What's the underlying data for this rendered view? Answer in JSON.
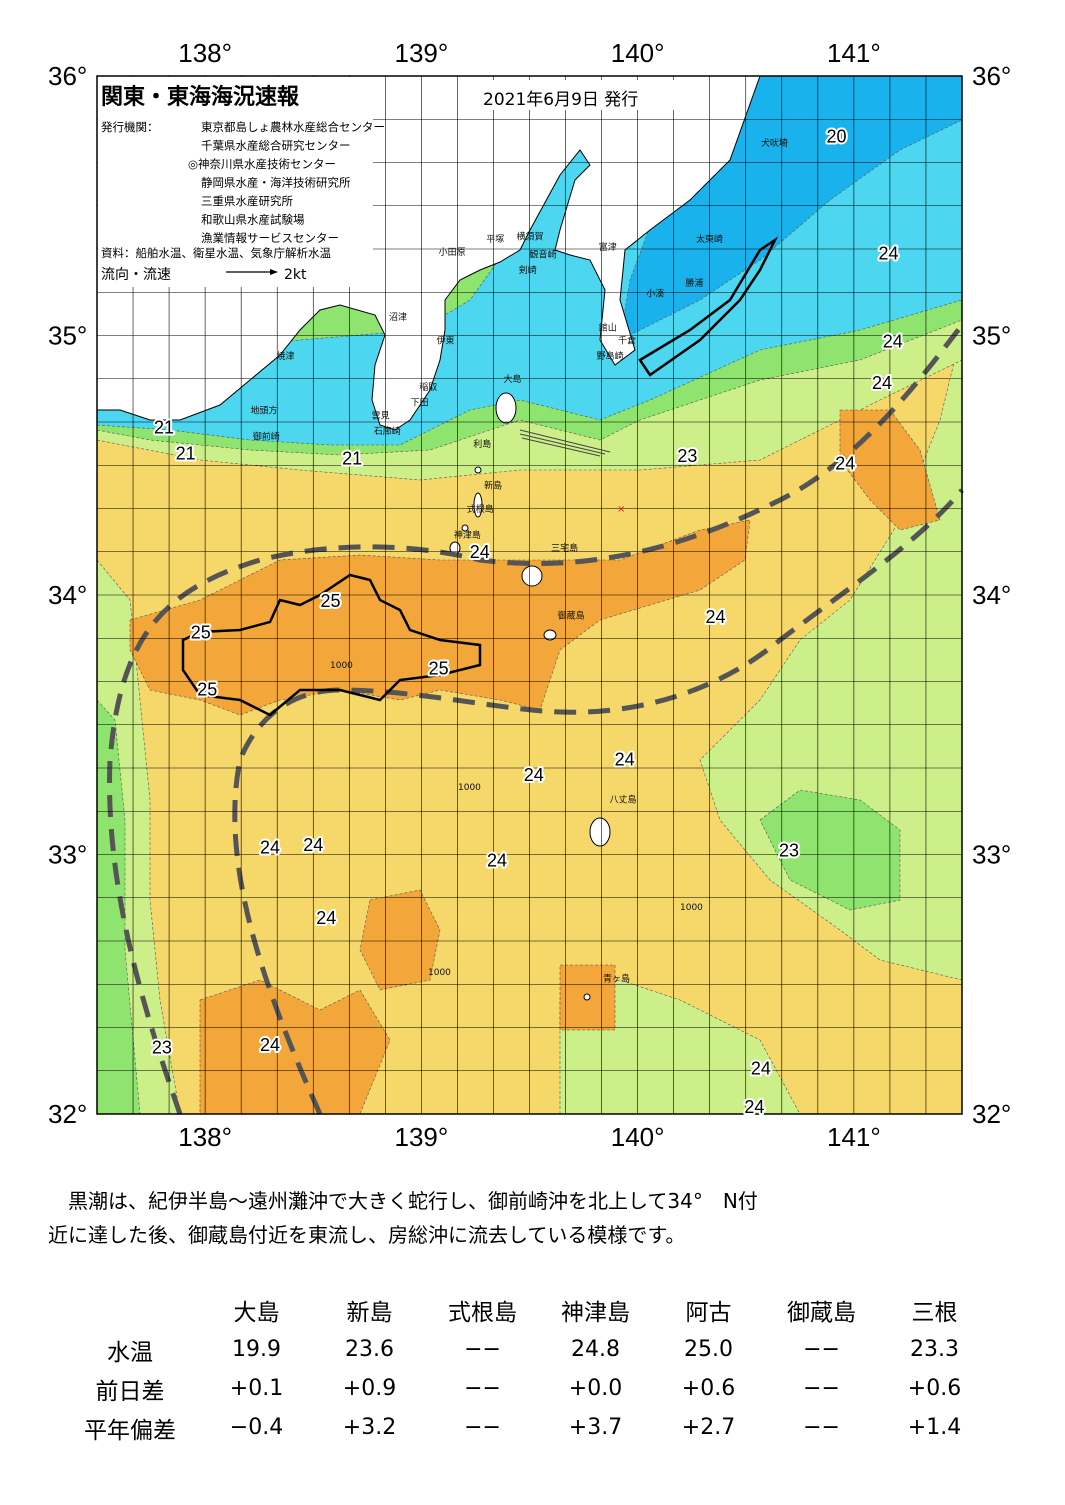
{
  "map": {
    "title": "関東・東海海況速報",
    "issue_date": "2021年6月9日 発行",
    "issuer_label": "発行機関：",
    "issuers": [
      "東京都島しょ農林水産総合センター",
      "千葉県水産総合研究センター",
      "◎神奈川県水産技術センター",
      "静岡県水産・海洋技術研究所",
      "三重県水産研究所",
      "和歌山県水産試験場",
      "漁業情報サービスセンター"
    ],
    "source": "資料：船舶水温、衛星水温、気象庁解析水温",
    "flow_label": "流向・流速",
    "flow_scale": "2kt",
    "lon_ticks": [
      "138°",
      "139°",
      "140°",
      "141°"
    ],
    "lat_ticks": [
      "36°",
      "35°",
      "34°",
      "33°",
      "32°"
    ],
    "temperature_labels": [
      {
        "value": "20",
        "lon": 140.92,
        "lat": 35.77
      },
      {
        "value": "24",
        "lon": 141.16,
        "lat": 35.32
      },
      {
        "value": "24",
        "lon": 141.18,
        "lat": 34.98
      },
      {
        "value": "24",
        "lon": 141.13,
        "lat": 34.82
      },
      {
        "value": "24",
        "lon": 140.96,
        "lat": 34.51
      },
      {
        "value": "23",
        "lon": 140.23,
        "lat": 34.54
      },
      {
        "value": "21",
        "lon": 137.81,
        "lat": 34.65
      },
      {
        "value": "21",
        "lon": 137.91,
        "lat": 34.55
      },
      {
        "value": "21",
        "lon": 138.68,
        "lat": 34.53
      },
      {
        "value": "24",
        "lon": 139.27,
        "lat": 34.17
      },
      {
        "value": "25",
        "lon": 138.58,
        "lat": 33.98
      },
      {
        "value": "25",
        "lon": 137.98,
        "lat": 33.86
      },
      {
        "value": "25",
        "lon": 139.08,
        "lat": 33.72
      },
      {
        "value": "25",
        "lon": 138.01,
        "lat": 33.64
      },
      {
        "value": "24",
        "lon": 140.36,
        "lat": 33.92
      },
      {
        "value": "24",
        "lon": 139.94,
        "lat": 33.37
      },
      {
        "value": "24",
        "lon": 139.52,
        "lat": 33.31
      },
      {
        "value": "24",
        "lon": 138.3,
        "lat": 33.03
      },
      {
        "value": "24",
        "lon": 138.5,
        "lat": 33.04
      },
      {
        "value": "23",
        "lon": 140.7,
        "lat": 33.02
      },
      {
        "value": "24",
        "lon": 139.35,
        "lat": 32.98
      },
      {
        "value": "24",
        "lon": 138.56,
        "lat": 32.76
      },
      {
        "value": "23",
        "lon": 137.8,
        "lat": 32.26
      },
      {
        "value": "24",
        "lon": 138.3,
        "lat": 32.27
      },
      {
        "value": "24",
        "lon": 140.57,
        "lat": 32.18
      },
      {
        "value": "24",
        "lon": 140.54,
        "lat": 32.03
      }
    ],
    "place_names": [
      {
        "name": "犬吠埼",
        "lon": 140.57,
        "lat": 35.73
      },
      {
        "name": "太東崎",
        "lon": 140.27,
        "lat": 35.36
      },
      {
        "name": "勝浦",
        "lon": 140.22,
        "lat": 35.19
      },
      {
        "name": "小湊",
        "lon": 140.04,
        "lat": 35.15
      },
      {
        "name": "富津",
        "lon": 139.82,
        "lat": 35.33
      },
      {
        "name": "館山",
        "lon": 139.82,
        "lat": 35.02
      },
      {
        "name": "千倉",
        "lon": 139.91,
        "lat": 34.97
      },
      {
        "name": "野島崎",
        "lon": 139.81,
        "lat": 34.91
      },
      {
        "name": "小田原",
        "lon": 139.08,
        "lat": 35.31
      },
      {
        "name": "平塚",
        "lon": 139.3,
        "lat": 35.36
      },
      {
        "name": "横須賀",
        "lon": 139.44,
        "lat": 35.37
      },
      {
        "name": "観音崎",
        "lon": 139.5,
        "lat": 35.3
      },
      {
        "name": "剣崎",
        "lon": 139.45,
        "lat": 35.24
      },
      {
        "name": "大島",
        "lon": 139.38,
        "lat": 34.82
      },
      {
        "name": "利島",
        "lon": 139.24,
        "lat": 34.57
      },
      {
        "name": "新島",
        "lon": 139.29,
        "lat": 34.41
      },
      {
        "name": "式根島",
        "lon": 139.21,
        "lat": 34.32
      },
      {
        "name": "神津島",
        "lon": 139.15,
        "lat": 34.22
      },
      {
        "name": "三宅島",
        "lon": 139.6,
        "lat": 34.17
      },
      {
        "name": "御蔵島",
        "lon": 139.63,
        "lat": 33.91
      },
      {
        "name": "八丈島",
        "lon": 139.87,
        "lat": 33.2
      },
      {
        "name": "青ヶ島",
        "lon": 139.84,
        "lat": 32.51
      },
      {
        "name": "伊東",
        "lon": 139.07,
        "lat": 34.97
      },
      {
        "name": "沼津",
        "lon": 138.85,
        "lat": 35.06
      },
      {
        "name": "焼津",
        "lon": 138.33,
        "lat": 34.91
      },
      {
        "name": "地頭方",
        "lon": 138.21,
        "lat": 34.7
      },
      {
        "name": "御前崎",
        "lon": 138.22,
        "lat": 34.6
      },
      {
        "name": "稲取",
        "lon": 138.99,
        "lat": 34.79
      },
      {
        "name": "下田",
        "lon": 138.95,
        "lat": 34.73
      },
      {
        "name": "雲見",
        "lon": 138.77,
        "lat": 34.68
      },
      {
        "name": "石廊崎",
        "lon": 138.78,
        "lat": 34.62
      }
    ],
    "contour_label": "1000",
    "cross_marker": "×"
  },
  "summary": {
    "line1": "黒潮は、紀伊半島～遠州灘沖で大きく蛇行し、御前崎沖を北上して34°　N付",
    "line2": "近に達した後、御蔵島付近を東流し、房総沖に流去している模様です。"
  },
  "observations": {
    "stations": [
      "大島",
      "新島",
      "式根島",
      "神津島",
      "阿古",
      "御蔵島",
      "三根"
    ],
    "rows": [
      {
        "label": "水温",
        "values": [
          "19.9",
          "23.6",
          "−−",
          "24.8",
          "25.0",
          "−−",
          "23.3"
        ]
      },
      {
        "label": "前日差",
        "values": [
          "+0.1",
          "+0.9",
          "−−",
          "+0.0",
          "+0.6",
          "−−",
          "+0.6"
        ]
      },
      {
        "label": "平年偏差",
        "values": [
          "−0.4",
          "+3.2",
          "−−",
          "+3.7",
          "+2.7",
          "−−",
          "+1.4"
        ]
      }
    ]
  },
  "colors": {
    "sst_20": "#1ab2ec",
    "sst_21": "#4dd6ef",
    "sst_22": "#8ee46e",
    "sst_23": "#cdef8a",
    "sst_24": "#f5d76a",
    "sst_25": "#f3a73a",
    "land": "#ffffff",
    "grid": "#000000",
    "kuroshio_axis": "#555555"
  }
}
